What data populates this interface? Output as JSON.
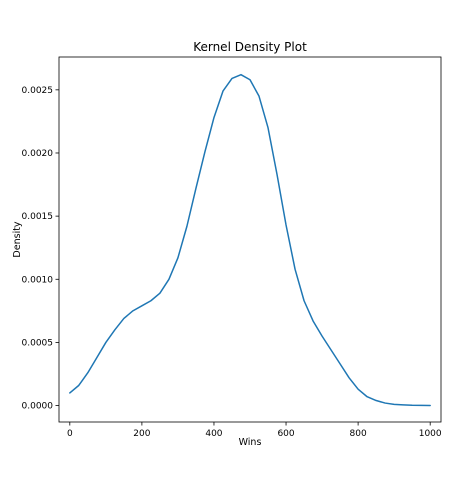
{
  "chart_data": {
    "type": "line",
    "title": "Kernel Density Plot",
    "xlabel": "Wins",
    "ylabel": "Density",
    "xlim": [
      -30,
      1030
    ],
    "ylim": [
      -0.00013,
      0.00276
    ],
    "x_ticks": [
      0,
      200,
      400,
      600,
      800,
      1000
    ],
    "x_tick_labels": [
      "0",
      "200",
      "400",
      "600",
      "800",
      "1000"
    ],
    "y_ticks": [
      0.0,
      0.0005,
      0.001,
      0.0015,
      0.002,
      0.0025
    ],
    "y_tick_labels": [
      "0.0000",
      "0.0005",
      "0.0010",
      "0.0015",
      "0.0020",
      "0.0025"
    ],
    "grid": false,
    "legend": "none",
    "series": [
      {
        "color": "#1f77b4",
        "x": [
          0,
          25,
          50,
          75,
          100,
          125,
          150,
          175,
          200,
          225,
          250,
          275,
          300,
          325,
          350,
          375,
          400,
          425,
          450,
          475,
          500,
          525,
          550,
          575,
          600,
          625,
          650,
          675,
          700,
          725,
          750,
          775,
          800,
          825,
          850,
          875,
          900,
          925,
          950,
          975,
          1000
        ],
        "y": [
          0.0001,
          0.00016,
          0.00026,
          0.00038,
          0.0005,
          0.0006,
          0.00069,
          0.00075,
          0.00079,
          0.00083,
          0.00089,
          0.001,
          0.00117,
          0.00142,
          0.00172,
          0.00201,
          0.00228,
          0.00249,
          0.00259,
          0.00262,
          0.00258,
          0.00245,
          0.0022,
          0.00183,
          0.00143,
          0.00108,
          0.00083,
          0.00067,
          0.00055,
          0.00044,
          0.00033,
          0.00022,
          0.00013,
          7e-05,
          4e-05,
          2e-05,
          1e-05,
          6e-06,
          3e-06,
          2e-06,
          1e-06
        ]
      }
    ]
  }
}
